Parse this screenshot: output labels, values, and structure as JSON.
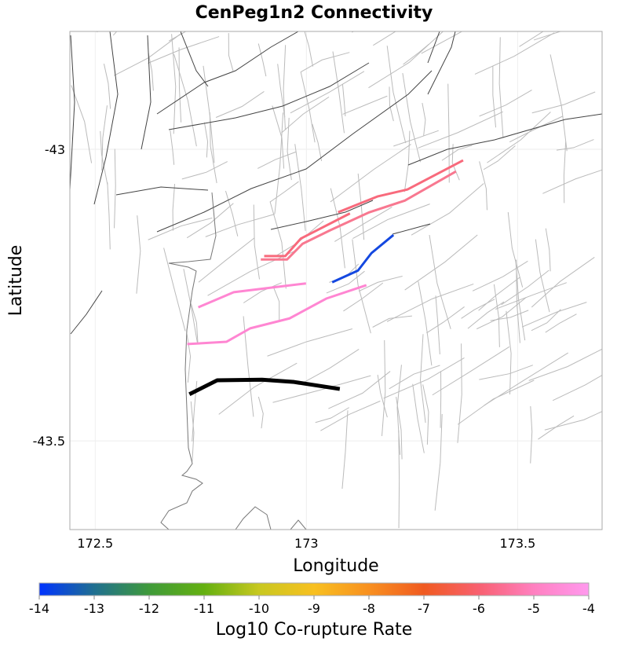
{
  "title": "CenPeg1n2 Connectivity",
  "map": {
    "xlabel": "Longitude",
    "ylabel": "Latitude",
    "xlim": [
      172.44,
      173.7
    ],
    "ylim": [
      -43.652,
      -42.798
    ],
    "xticks": [
      {
        "v": 172.5,
        "label": "172.5"
      },
      {
        "v": 173,
        "label": "173"
      },
      {
        "v": 173.5,
        "label": "173.5"
      }
    ],
    "yticks": [
      {
        "v": -43,
        "label": "-43"
      },
      {
        "v": -43.5,
        "label": "-43.5"
      }
    ],
    "source_color": "#000000",
    "ruptures": [
      {
        "name": "source-section",
        "rate": null,
        "color": "#000000",
        "lon": [
          172.723,
          172.789,
          172.895,
          172.971,
          173.079
        ],
        "lat": [
          -43.42,
          -43.396,
          -43.395,
          -43.399,
          -43.411
        ]
      },
      {
        "name": "rupture-pink-lower",
        "rate": -4.3,
        "color": "#ff86d2",
        "lon": [
          172.718,
          172.811,
          172.867,
          172.96,
          173.047,
          173.142
        ],
        "lat": [
          -43.334,
          -43.33,
          -43.307,
          -43.29,
          -43.256,
          -43.233
        ]
      },
      {
        "name": "rupture-pink-upper",
        "rate": -4.3,
        "color": "#ff86d2",
        "lon": [
          172.744,
          172.828,
          172.999
        ],
        "lat": [
          -43.271,
          -43.245,
          -43.23
        ]
      },
      {
        "name": "rupture-blue",
        "rate": -13.6,
        "color": "#1448e0",
        "lon": [
          173.061,
          173.122,
          173.154,
          173.206
        ],
        "lat": [
          -43.228,
          -43.208,
          -43.178,
          -43.147
        ]
      },
      {
        "name": "rupture-red-a",
        "rate": -5.4,
        "color": "#f86a7c",
        "lon": [
          172.9,
          172.95,
          172.987,
          173.103
        ],
        "lat": [
          -43.183,
          -43.183,
          -43.153,
          -43.11
        ]
      },
      {
        "name": "rupture-red-b",
        "rate": -5.4,
        "color": "#f86a7c",
        "lon": [
          173.075,
          173.168,
          173.239,
          173.371
        ],
        "lat": [
          -43.108,
          -43.081,
          -43.069,
          -43.019
        ]
      },
      {
        "name": "rupture-red-c",
        "rate": -5.0,
        "color": "#f87890",
        "lon": [
          172.892,
          172.954,
          172.991,
          173.056,
          173.149,
          173.233,
          173.354
        ],
        "lat": [
          -43.189,
          -43.189,
          -43.162,
          -43.139,
          -43.108,
          -43.088,
          -43.038
        ]
      }
    ]
  },
  "colorbar": {
    "label": "Log10 Co-rupture Rate",
    "range": [
      -14,
      -4
    ],
    "ticks": [
      "-14",
      "-13",
      "-12",
      "-11",
      "-10",
      "-9",
      "-8",
      "-7",
      "-6",
      "-5",
      "-4"
    ],
    "stops": [
      "#0033ff",
      "#1f6f90",
      "#3f9a3a",
      "#64b010",
      "#c8c820",
      "#f8c020",
      "#f89020",
      "#f05a20",
      "#f86070",
      "#ff80c0",
      "#ff99ee"
    ]
  }
}
